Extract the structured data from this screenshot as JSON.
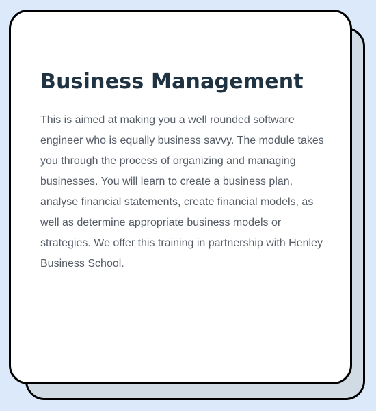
{
  "card": {
    "title": "Business Management",
    "description": "This is aimed at making you a well rounded software engineer who is equally business savvy. The module takes you through the process of organizing and managing businesses. You will learn to create a business plan, analyse financial statements, create financial models, as well as determine appropriate business models or strategies. We offer this training in partnership with Henley Business School."
  },
  "colors": {
    "page_background": "#dbe9fb",
    "card_background": "#ffffff",
    "shadow_card_background": "#d0dbe3",
    "border": "#000000",
    "title": "#1f3342",
    "body_text": "#555c66"
  }
}
